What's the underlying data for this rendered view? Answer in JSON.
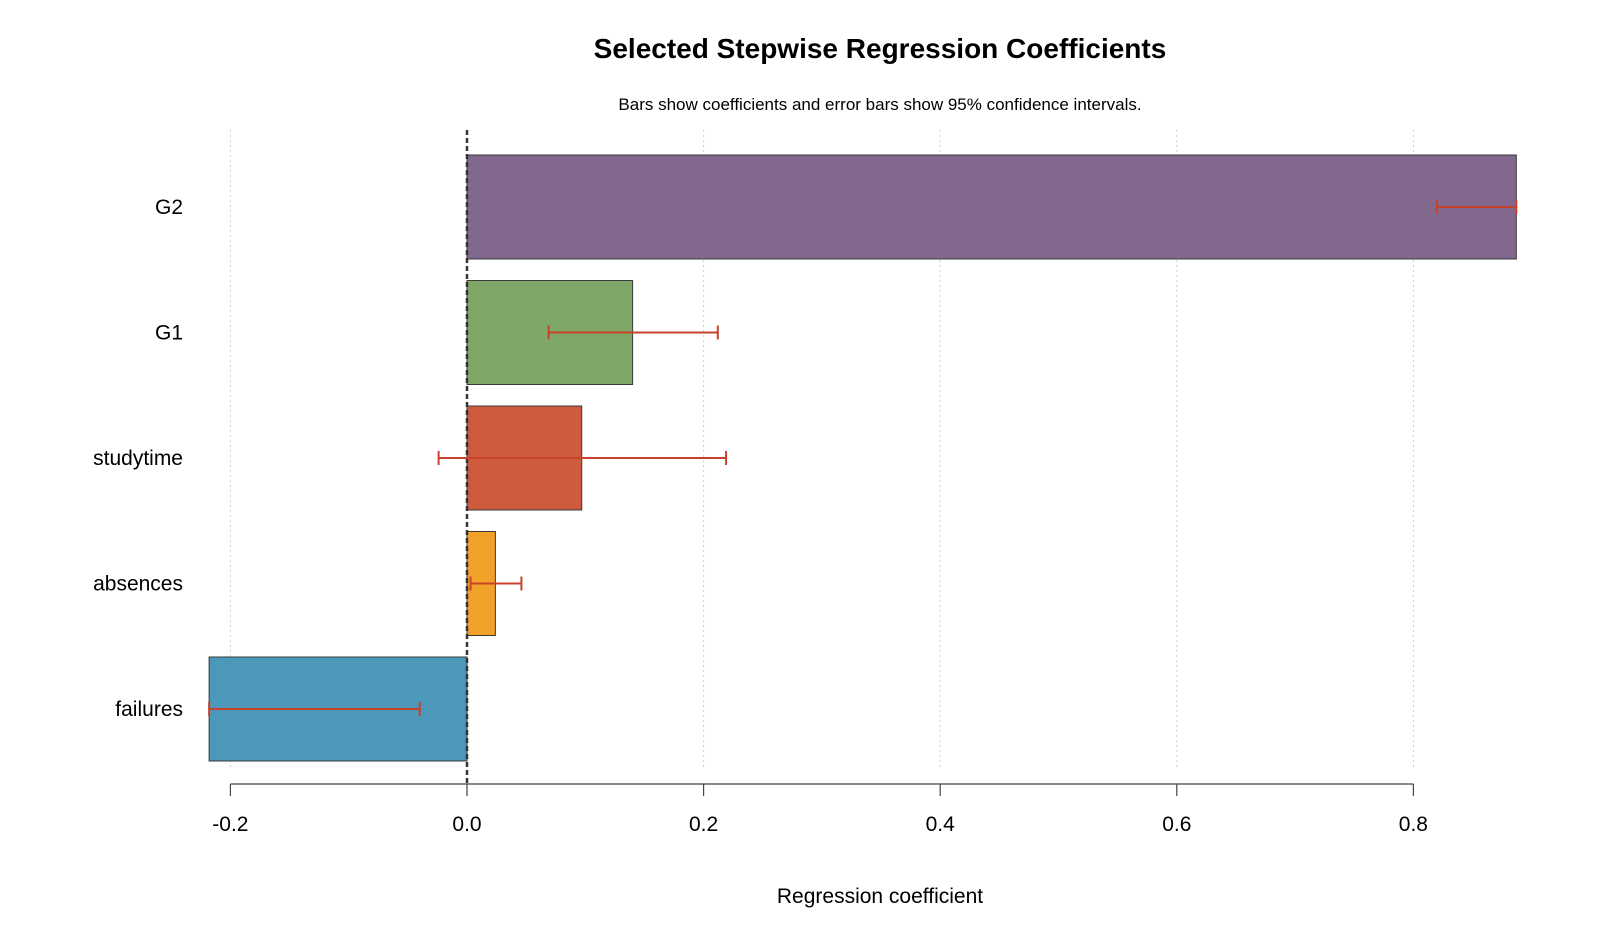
{
  "chart_data": {
    "type": "bar",
    "orientation": "horizontal",
    "title": "Selected Stepwise Regression Coefficients",
    "subtitle": "Bars show coefficients and error bars show 95% confidence intervals.",
    "xlabel": "Regression coefficient",
    "ylabel": "",
    "xlim": [
      -0.2,
      0.8
    ],
    "x_ticks": [
      -0.2,
      0.0,
      0.2,
      0.4,
      0.6,
      0.8
    ],
    "x_tick_labels": [
      "-0.2",
      "0.0",
      "0.2",
      "0.4",
      "0.6",
      "0.8"
    ],
    "grid": "vertical dotted",
    "reference_line": 0.0,
    "categories": [
      "G2",
      "G1",
      "studytime",
      "absences",
      "failures"
    ],
    "values": [
      0.887,
      0.14,
      0.097,
      0.024,
      -0.218
    ],
    "ci_low": [
      0.82,
      0.069,
      -0.024,
      0.003,
      -0.218
    ],
    "ci_high": [
      0.887,
      0.212,
      0.219,
      0.046,
      -0.04
    ],
    "colors": [
      "#83688D",
      "#7FA868",
      "#CF5B3E",
      "#F2A228",
      "#4B98BA"
    ],
    "error_bar_color": "#C8422A"
  }
}
